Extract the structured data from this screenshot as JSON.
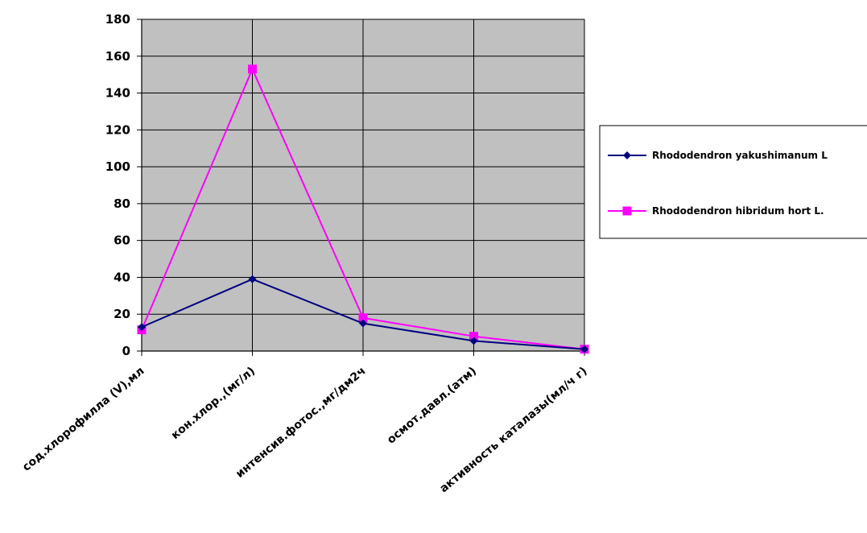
{
  "chart_data": {
    "type": "line",
    "title": "",
    "xlabel": "",
    "ylabel": "",
    "ylim": [
      0,
      180
    ],
    "yticks": [
      "0",
      "20",
      "40",
      "60",
      "80",
      "100",
      "120",
      "140",
      "160",
      "180"
    ],
    "grid": true,
    "legend_position": "right",
    "categories": [
      "сод.хлорофилла (V),мл",
      "кон.хлор.,(мг/л)",
      "интенсив.фотос.,мг/дм2ч",
      "осмот.давл.(атм)",
      "активность каталазы(мл/ч г)"
    ],
    "series": [
      {
        "name": "Rhododendron yakushimanum L",
        "values": [
          13,
          39,
          15,
          5.5,
          1
        ],
        "color": "#000080",
        "marker": "diamond"
      },
      {
        "name": "Rhododendron hibridum hort L.",
        "values": [
          11.5,
          153,
          18,
          8,
          1
        ],
        "color": "#ff00ff",
        "marker": "square"
      }
    ],
    "plot_background": "#c0c0c0"
  }
}
